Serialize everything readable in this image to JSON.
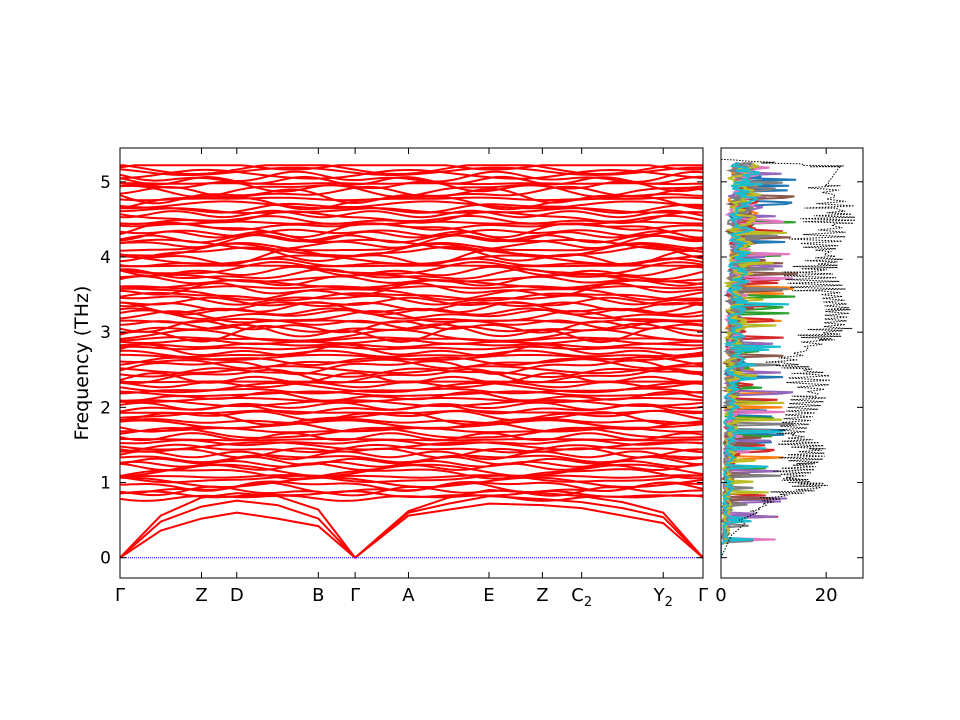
{
  "chart_data": [
    {
      "type": "line",
      "title": "",
      "xlabel": "",
      "ylabel": "Frequency (THz)",
      "ylim": [
        -0.27,
        5.45
      ],
      "y_ticks": [
        0,
        1,
        2,
        3,
        4,
        5
      ],
      "y_tick_labels": [
        "0",
        "1",
        "2",
        "3",
        "4",
        "5"
      ],
      "high_symmetry_points": [
        {
          "label": "Γ",
          "sub": "",
          "x": 0.0
        },
        {
          "label": "Z",
          "sub": "",
          "x": 0.1398
        },
        {
          "label": "D",
          "sub": "",
          "x": 0.2003
        },
        {
          "label": "B",
          "sub": "",
          "x": 0.3402
        },
        {
          "label": "Γ",
          "sub": "",
          "x": 0.4033
        },
        {
          "label": "A",
          "sub": "",
          "x": 0.4948
        },
        {
          "label": "E",
          "sub": "",
          "x": 0.6329
        },
        {
          "label": "Z",
          "sub": "",
          "x": 0.7245
        },
        {
          "label": "C",
          "sub": "2",
          "x": 0.7919
        },
        {
          "label": "Y",
          "sub": "2",
          "x": 0.9318
        },
        {
          "label": "Γ",
          "sub": "",
          "x": 1.0
        }
      ],
      "band_color": "#ff0000",
      "zero_line_color": "#0000ff",
      "acoustic_branches": [
        {
          "name": "",
          "x": [
            0.0,
            0.07,
            0.1398,
            0.2003,
            0.27,
            0.3402,
            0.4033,
            0.4948,
            0.5638,
            0.6329,
            0.7245,
            0.7919,
            0.862,
            0.9318,
            1.0
          ],
          "values": [
            0.0,
            0.36,
            0.52,
            0.6,
            0.52,
            0.42,
            0.0,
            0.56,
            0.64,
            0.72,
            0.7,
            0.66,
            0.56,
            0.46,
            0.0
          ]
        },
        {
          "name": "",
          "x": [
            0.0,
            0.07,
            0.1398,
            0.2003,
            0.27,
            0.3402,
            0.4033,
            0.4948,
            0.5638,
            0.6329,
            0.7245,
            0.7919,
            0.862,
            0.9318,
            1.0
          ],
          "values": [
            0.0,
            0.48,
            0.68,
            0.76,
            0.7,
            0.52,
            0.0,
            0.6,
            0.72,
            0.82,
            0.78,
            0.74,
            0.66,
            0.54,
            0.0
          ]
        },
        {
          "name": "",
          "x": [
            0.0,
            0.07,
            0.1398,
            0.2003,
            0.27,
            0.3402,
            0.4033,
            0.4948,
            0.5638,
            0.6329,
            0.7245,
            0.7919,
            0.862,
            0.9318,
            1.0
          ],
          "values": [
            0.0,
            0.56,
            0.8,
            0.86,
            0.82,
            0.64,
            0.0,
            0.62,
            0.8,
            0.9,
            0.86,
            0.82,
            0.74,
            0.6,
            0.0
          ]
        }
      ],
      "optical_band_count": 110,
      "optical_band_range": [
        0.55,
        5.22
      ]
    },
    {
      "type": "line",
      "title": "",
      "xlabel": "",
      "ylabel": "",
      "xlim": [
        0,
        27
      ],
      "ylim": [
        -0.27,
        5.45
      ],
      "x_ticks": [
        0,
        20
      ],
      "x_tick_labels": [
        "0",
        "20"
      ],
      "total_dos_style": "black dotted",
      "total_dos": {
        "name": "",
        "frequency": [
          0.0,
          0.3,
          0.45,
          0.5,
          0.6,
          0.8,
          0.95,
          1.05,
          1.25,
          1.45,
          1.65,
          1.9,
          2.15,
          2.45,
          2.6,
          2.9,
          3.05,
          3.3,
          3.55,
          3.8,
          3.95,
          4.15,
          4.45,
          4.65,
          4.95,
          5.2,
          5.3
        ],
        "values": [
          0.0,
          2.0,
          4.5,
          3.5,
          7.0,
          12.0,
          22.0,
          16.0,
          19.0,
          20.5,
          16.0,
          18.0,
          20.5,
          21.0,
          14.0,
          22.0,
          25.0,
          26.0,
          24.0,
          21.0,
          24.0,
          22.5,
          25.5,
          26.0,
          23.0,
          26.0,
          0.0
        ]
      },
      "projected_dos_colors": [
        "#1f77b4",
        "#ff7f0e",
        "#2ca02c",
        "#d62728",
        "#9467bd",
        "#8c564b",
        "#e377c2",
        "#7f7f7f",
        "#bcbd22",
        "#17becf"
      ],
      "projected_dos_peak_max": 16
    }
  ]
}
